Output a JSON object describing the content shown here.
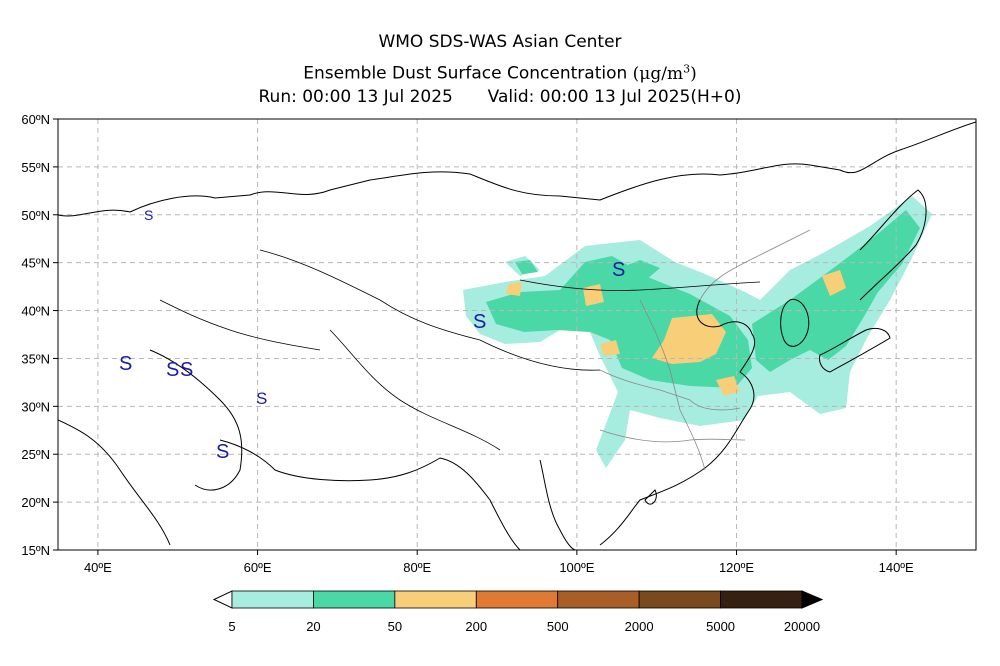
{
  "header": {
    "line1": "WMO SDS-WAS Asian Center",
    "line2_text": "Ensemble Dust Surface Concentration",
    "line2_unit": "(μg/m",
    "line2_unit_sup": "3",
    "line2_unit_close": ")",
    "run_label": "Run: 00:00 13 Jul 2025",
    "valid_label": "Valid: 00:00 13 Jul 2025(H+0)"
  },
  "axes": {
    "lat_ticks": [
      "60ºN",
      "55ºN",
      "50ºN",
      "45ºN",
      "40ºN",
      "35ºN",
      "30ºN",
      "25ºN",
      "20ºN",
      "15ºN"
    ],
    "lon_ticks": [
      "40ºE",
      "60ºE",
      "80ºE",
      "100ºE",
      "120ºE",
      "140ºE"
    ],
    "lat_range": [
      15,
      60
    ],
    "lon_range": [
      35,
      150
    ],
    "grid": "dashed"
  },
  "colorbar": {
    "labels": [
      "5",
      "20",
      "50",
      "200",
      "500",
      "2000",
      "5000",
      "20000"
    ],
    "colors": [
      "#a6ede0",
      "#4ad8a6",
      "#f8cf78",
      "#e07a32",
      "#a85e25",
      "#7a4a1e",
      "#362011"
    ]
  },
  "symbols": {
    "marker": "S",
    "color": "#1a1aa8"
  }
}
